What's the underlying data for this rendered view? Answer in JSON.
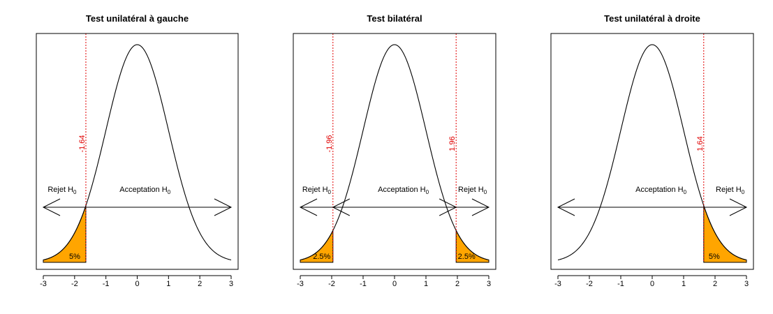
{
  "chart_data": [
    {
      "type": "area",
      "title": "Test unilatéral à gauche",
      "xlim": [
        -3,
        3
      ],
      "ticks": [
        -3,
        -2,
        -1,
        0,
        1,
        2,
        3
      ],
      "tick_labels": [
        "-3",
        "-2",
        "-1",
        "0",
        "1",
        "2",
        "3"
      ],
      "curve": "standard normal density",
      "critical_values": [
        {
          "x": -1.64,
          "label": "-1.64"
        }
      ],
      "rejection_regions": [
        {
          "from": -3,
          "to": -1.64,
          "label": "5%"
        }
      ],
      "region_labels": [
        {
          "text": "Rejet H",
          "sub": "0",
          "at": -2.4
        },
        {
          "text": "Acceptation H",
          "sub": "0",
          "at": 0.25
        }
      ],
      "arrows": [
        {
          "from": -1.64,
          "to": -3
        },
        {
          "from": -1.64,
          "to": 3
        }
      ]
    },
    {
      "type": "area",
      "title": "Test bilatéral",
      "xlim": [
        -3,
        3
      ],
      "ticks": [
        -3,
        -2,
        -1,
        0,
        1,
        2,
        3
      ],
      "tick_labels": [
        "-3",
        "-2",
        "-1",
        "0",
        "1",
        "2",
        "3"
      ],
      "curve": "standard normal density",
      "critical_values": [
        {
          "x": -1.96,
          "label": "-1.96"
        },
        {
          "x": 1.96,
          "label": "1.96"
        }
      ],
      "rejection_regions": [
        {
          "from": -3,
          "to": -1.96,
          "label": "2.5%"
        },
        {
          "from": 1.96,
          "to": 3,
          "label": "2.5%"
        }
      ],
      "region_labels": [
        {
          "text": "Rejet H",
          "sub": "0",
          "at": -2.48
        },
        {
          "text": "Acceptation H",
          "sub": "0",
          "at": 0.28
        },
        {
          "text": "Rejet H",
          "sub": "0",
          "at": 2.48
        }
      ],
      "arrows": [
        {
          "from": -1.96,
          "to": -3
        },
        {
          "from": -1.96,
          "to": 1.96
        },
        {
          "from": 1.96,
          "to": -1.96
        },
        {
          "from": 1.96,
          "to": 3
        }
      ]
    },
    {
      "type": "area",
      "title": "Test unilatéral à droite",
      "xlim": [
        -3,
        3
      ],
      "ticks": [
        -3,
        -2,
        -1,
        0,
        1,
        2,
        3
      ],
      "tick_labels": [
        "-3",
        "-2",
        "-1",
        "0",
        "1",
        "2",
        "3"
      ],
      "curve": "standard normal density",
      "critical_values": [
        {
          "x": 1.64,
          "label": "1.64"
        }
      ],
      "rejection_regions": [
        {
          "from": 1.64,
          "to": 3,
          "label": "5%"
        }
      ],
      "region_labels": [
        {
          "text": "Acceptation H",
          "sub": "0",
          "at": 0.28
        },
        {
          "text": "Rejet H",
          "sub": "0",
          "at": 2.48
        }
      ],
      "arrows": [
        {
          "from": 1.64,
          "to": -3
        },
        {
          "from": 1.64,
          "to": 3
        }
      ]
    }
  ],
  "colors": {
    "rejection_fill": "#FFA500",
    "critical_line": "#E00000",
    "curve": "#000000"
  }
}
